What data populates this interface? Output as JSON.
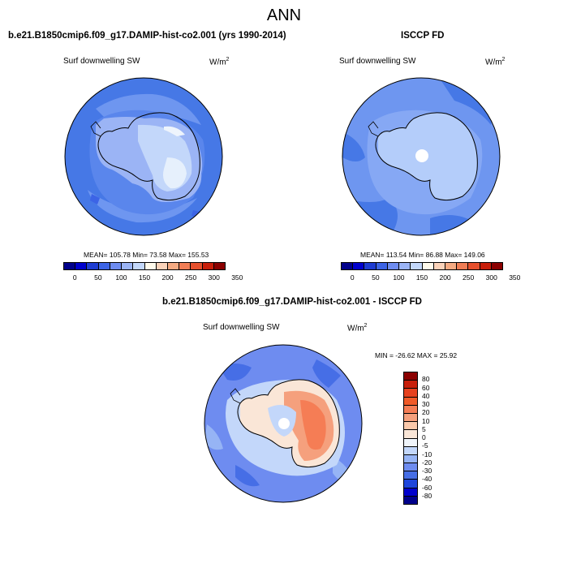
{
  "main_title": "ANN",
  "panels": {
    "left": {
      "title": "b.e21.B1850cmip6.f09_g17.DAMIP-hist-co2.001 (yrs 1990-2014)",
      "subtitle": "Surf downwelling SW",
      "units": "W/m",
      "units_sup": "2",
      "stats": "MEAN= 105.78  Min=  73.58  Max= 155.53",
      "mean": 105.78,
      "min": 73.58,
      "max": 155.53
    },
    "right": {
      "title": "ISCCP FD",
      "subtitle": "Surf downwelling SW",
      "units": "W/m",
      "units_sup": "2",
      "stats": "MEAN= 113.54  Min=  86.88  Max= 149.06",
      "mean": 113.54,
      "min": 86.88,
      "max": 149.06
    },
    "diff": {
      "title": "b.e21.B1850cmip6.f09_g17.DAMIP-hist-co2.001 - ISCCP FD",
      "subtitle": "Surf downwelling SW",
      "units": "W/m",
      "units_sup": "2",
      "stats": "MIN = -26.62 MAX =  25.92",
      "min": -26.62,
      "max": 25.92
    }
  },
  "colorbar_abs": {
    "labels": [
      "0",
      "50",
      "100",
      "150",
      "200",
      "250",
      "300",
      "350"
    ],
    "colors": [
      "#00008b",
      "#0000cd",
      "#1e3cd2",
      "#3c64e6",
      "#6e8cf0",
      "#9bb4f5",
      "#c3d7fa",
      "#fffaeb",
      "#fad2b9",
      "#f5aa82",
      "#f07d55",
      "#e6502d",
      "#c81e0a",
      "#8b0000"
    ]
  },
  "colorbar_diff": {
    "labels": [
      "80",
      "60",
      "40",
      "30",
      "20",
      "10",
      "5",
      "0",
      "-5",
      "-10",
      "-20",
      "-30",
      "-40",
      "-60",
      "-80"
    ],
    "colors": [
      "#8b0000",
      "#c81e0a",
      "#e6411e",
      "#f05a28",
      "#f57d55",
      "#f5a07d",
      "#fac8aa",
      "#fae6d7",
      "#f0f5fa",
      "#c3d7fa",
      "#96b4f5",
      "#6e8cf0",
      "#466ee6",
      "#1e46dc",
      "#0000cd",
      "#00008b"
    ]
  },
  "colors": {
    "ocean_left": "#4678e6",
    "ocean_right": "#6e96f0",
    "land_left_inner": "#c3d7fa",
    "land_right_inner": "#b4cdfa",
    "diff_ocean": "#6e8cf0",
    "diff_land": "#f5c3a5"
  }
}
